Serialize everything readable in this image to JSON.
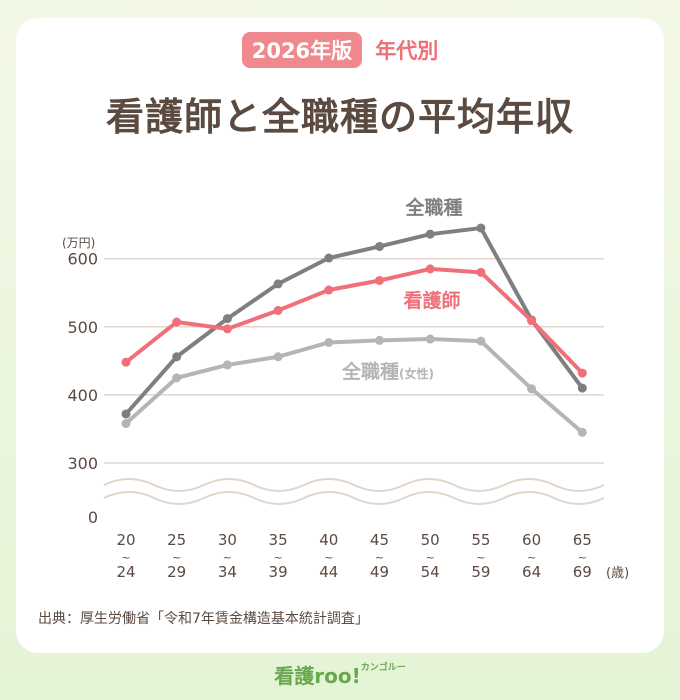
{
  "header": {
    "badge": "2026年版",
    "tag": "年代別",
    "title": "看護師と全職種の平均年収"
  },
  "chart_data": {
    "type": "line",
    "ylabel": "(万円)",
    "x_unit": "(歳)",
    "categories": [
      [
        "20",
        "~",
        "24"
      ],
      [
        "25",
        "~",
        "29"
      ],
      [
        "30",
        "~",
        "34"
      ],
      [
        "35",
        "~",
        "39"
      ],
      [
        "40",
        "~",
        "44"
      ],
      [
        "45",
        "~",
        "49"
      ],
      [
        "50",
        "~",
        "54"
      ],
      [
        "55",
        "~",
        "59"
      ],
      [
        "60",
        "~",
        "64"
      ],
      [
        "65",
        "~",
        "69"
      ]
    ],
    "y_ticks": [
      0,
      300,
      400,
      500,
      600
    ],
    "y_axis_break": [
      0,
      300
    ],
    "grid": true,
    "series": [
      {
        "name": "全職種",
        "color": "#7f7f7f",
        "values": [
          372,
          456,
          512,
          563,
          601,
          618,
          636,
          645,
          510,
          410
        ]
      },
      {
        "name": "看護師",
        "color": "#f0707a",
        "values": [
          448,
          507,
          497,
          524,
          554,
          568,
          585,
          580,
          509,
          432
        ]
      },
      {
        "name": "全職種",
        "name_suffix": "(女性)",
        "color": "#b5b5b5",
        "values": [
          358,
          425,
          444,
          456,
          477,
          480,
          482,
          479,
          409,
          345
        ]
      }
    ]
  },
  "footer": {
    "source": "出典：厚生労働省「令和7年賃金構造基本統計調査」",
    "logo_text": "看護roo!",
    "logo_kana": "カンゴルー"
  }
}
